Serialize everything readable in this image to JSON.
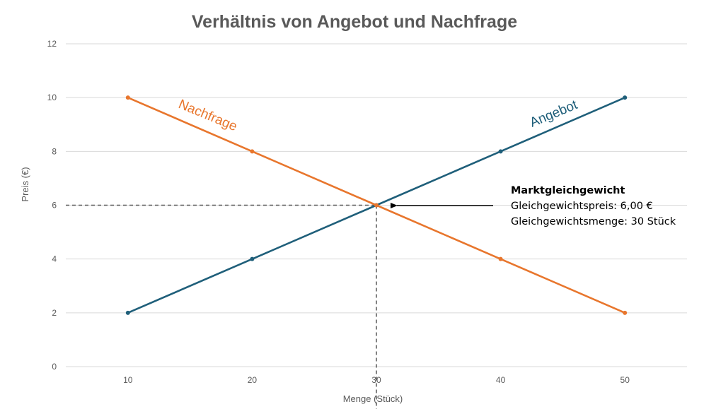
{
  "chart_data": {
    "type": "line",
    "title": "Verhältnis von Angebot und Nachfrage",
    "xlabel": "Menge (Stück)",
    "ylabel": "Preis (€)",
    "x": [
      10,
      20,
      30,
      40,
      50
    ],
    "xlim": [
      5,
      55
    ],
    "ylim": [
      0,
      12
    ],
    "xticks": [
      "10",
      "20",
      "30",
      "40",
      "50"
    ],
    "yticks": [
      "0",
      "2",
      "4",
      "6",
      "8",
      "10",
      "12"
    ],
    "grid": true,
    "legend": "none",
    "series": [
      {
        "name": "Angebot",
        "values": [
          2,
          4,
          6,
          8,
          10
        ],
        "color": "#1f5f7a"
      },
      {
        "name": "Nachfrage",
        "values": [
          10,
          8,
          6,
          4,
          2
        ],
        "color": "#e8762d"
      }
    ],
    "equilibrium": {
      "x": 30,
      "y": 6,
      "heading": "Marktgleichgewicht",
      "price_text": "Gleichgewichtspreis: 6,00 €",
      "quantity_text": "Gleichgewichtsmenge: 30 Stück"
    },
    "colors": {
      "grid": "#d9d9d9",
      "text": "#595959",
      "dashed": "#595959",
      "arrow": "#000000"
    }
  }
}
